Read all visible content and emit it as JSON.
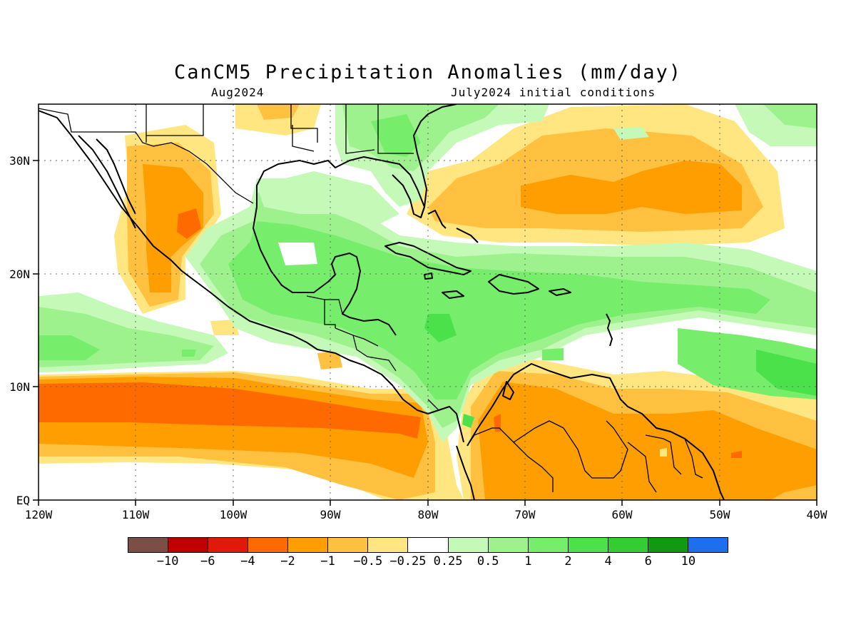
{
  "title": "CanCM5 Precipitation Anomalies (mm/day)",
  "subtitle_left": "Aug2024",
  "subtitle_right": "July2024 initial conditions",
  "map": {
    "lon_range": [
      -120,
      -40
    ],
    "lat_range": [
      0,
      35
    ],
    "lon_ticks": [
      "120W",
      "110W",
      "100W",
      "90W",
      "80W",
      "70W",
      "60W",
      "50W",
      "40W"
    ],
    "lat_ticks": [
      "EQ",
      "10N",
      "20N",
      "30N"
    ],
    "gridlines": "dotted"
  },
  "legend": {
    "colors": [
      "#7b4f45",
      "#c00000",
      "#e01a0a",
      "#ff6a00",
      "#ff9e00",
      "#ffc13f",
      "#ffe680",
      "#ffffff",
      "#c4f9b8",
      "#9ef28e",
      "#76ee6c",
      "#4ae14a",
      "#33cc33",
      "#119911",
      "#1e6ff0"
    ],
    "labels": [
      "−10",
      "−6",
      "−4",
      "−2",
      "−1",
      "−0.5",
      "−0.25",
      "0.25",
      "0.5",
      "1",
      "2",
      "4",
      "6",
      "10"
    ]
  },
  "anomaly_features": [
    {
      "region": "Eastern Pacific ITCZ band",
      "level": "-2"
    },
    {
      "region": "Northern South America",
      "level": "-1"
    },
    {
      "region": "Subtropical North Atlantic",
      "level": "-1"
    },
    {
      "region": "Western Mexico",
      "level": "-2"
    },
    {
      "region": "Caribbean Sea",
      "level": "2"
    },
    {
      "region": "Gulf of Mexico",
      "level": "0.5"
    },
    {
      "region": "Tropical Atlantic 10-15N",
      "level": "4"
    },
    {
      "region": "Southeastern US",
      "level": "1"
    },
    {
      "region": "Eastern Pacific 10-15N",
      "level": "1"
    }
  ]
}
